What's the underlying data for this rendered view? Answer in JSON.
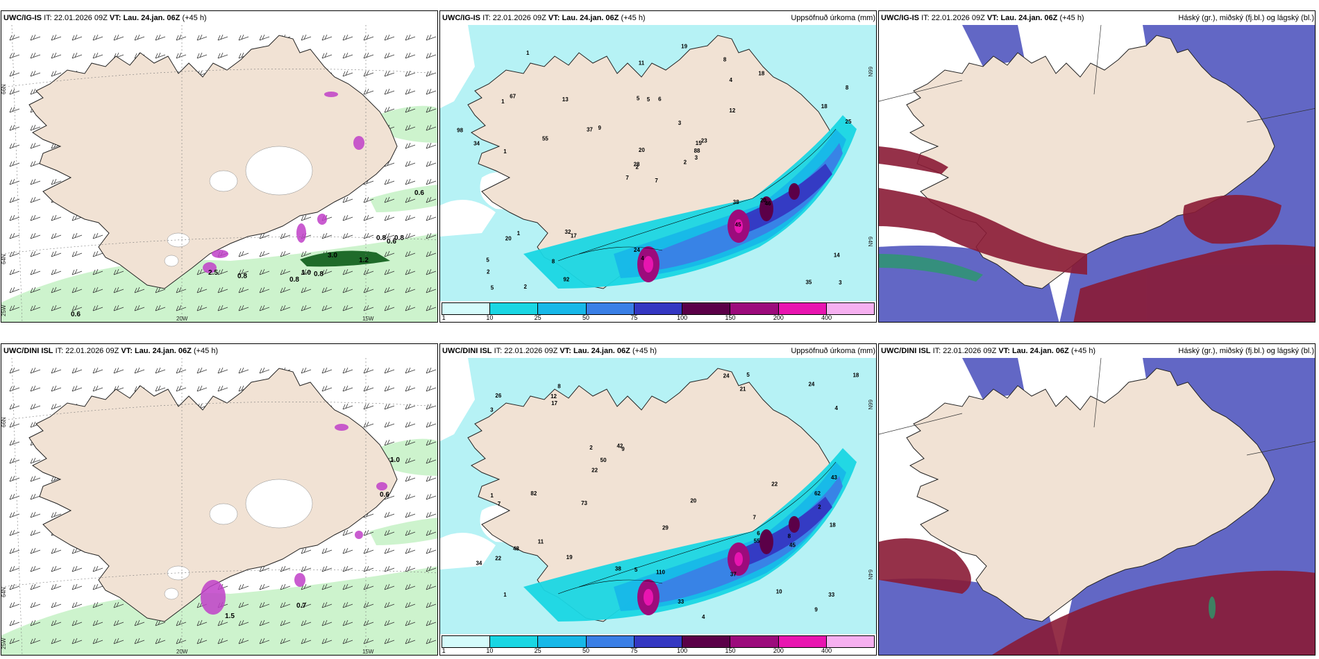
{
  "colors": {
    "land": "#f1e2d4",
    "coast": "#222222",
    "sea_precip": "#b6f2f5",
    "precip_light_green": "#c8f2c8",
    "precip_dark_green": "#1f6b2a",
    "convective_magenta": "#c040c8",
    "high_cloud_red": "#8a1b35",
    "mid_cloud_blue": "#5a5fc2",
    "low_cloud_green": "#2a9a6a"
  },
  "panels": [
    {
      "model": "UWC/IG-IS",
      "it_label": "IT:",
      "it_value": "22.01.2026 09Z",
      "vt_label": "VT:",
      "vt_value": "Lau. 24.jan. 06Z",
      "lead": "(+45 h)",
      "right_title": "",
      "type": "wind_precip",
      "lat_labels": [
        "66N",
        "64N",
        "25W"
      ],
      "lon_labels": [
        "20W",
        "15W"
      ],
      "values": [
        "0.6",
        "0.6",
        "0.8",
        "0.8",
        "1.0",
        "0.8",
        "0.8",
        "0.8",
        "1.2",
        "3.0",
        "0.6",
        "2.5"
      ]
    },
    {
      "model": "UWC/IG-IS",
      "it_label": "IT:",
      "it_value": "22.01.2026 09Z",
      "vt_label": "VT:",
      "vt_value": "Lau. 24.jan. 06Z",
      "lead": "(+45 h)",
      "right_title": "Uppsöfnuð úrkoma (mm)",
      "type": "accum_precip",
      "lat_labels": [
        "66N",
        "64N"
      ],
      "values": [
        "7",
        "1",
        "2",
        "5",
        "15",
        "17",
        "8",
        "6",
        "4",
        "2",
        "1",
        "3",
        "1",
        "8",
        "7",
        "12",
        "2",
        "5",
        "3",
        "1",
        "9",
        "2",
        "8",
        "5",
        "23",
        "46",
        "67",
        "11",
        "34",
        "38",
        "25",
        "28",
        "24",
        "20",
        "13",
        "18",
        "32",
        "35",
        "14",
        "20",
        "19",
        "37",
        "55",
        "45",
        "92",
        "98",
        "88",
        "5",
        "4",
        "3",
        "20",
        "18"
      ],
      "legend": [
        "1",
        "10",
        "25",
        "50",
        "75",
        "100",
        "150",
        "200",
        "400"
      ]
    },
    {
      "model": "UWC/IG-IS",
      "it_label": "IT:",
      "it_value": "22.01.2026 09Z",
      "vt_label": "VT:",
      "vt_value": "Lau. 24.jan. 06Z",
      "lead": "(+45 h)",
      "right_title": "Háský (gr.), miðský (fj.bl.) og lágský (bl.)",
      "type": "clouds"
    },
    {
      "model": "UWC/DINI ISL",
      "it_label": "IT:",
      "it_value": "22.01.2026 09Z",
      "vt_label": "VT:",
      "vt_value": "Lau. 24.jan. 06Z",
      "lead": "(+45 h)",
      "right_title": "",
      "type": "wind_precip",
      "lat_labels": [
        "66N",
        "64N",
        "25W"
      ],
      "lon_labels": [
        "20W",
        "15W"
      ],
      "values": [
        "1.0",
        "0.7",
        "1.5",
        "0.6"
      ]
    },
    {
      "model": "UWC/DINI ISL",
      "it_label": "IT:",
      "it_value": "22.01.2026 09Z",
      "vt_label": "VT:",
      "vt_value": "Lau. 24.jan. 06Z",
      "lead": "(+45 h)",
      "right_title": "Uppsöfnuð úrkoma (mm)",
      "type": "accum_precip",
      "lat_labels": [
        "66N",
        "64N"
      ],
      "values": [
        "7",
        "2",
        "1",
        "8",
        "9",
        "10",
        "22",
        "21",
        "2",
        "4",
        "3",
        "1",
        "26",
        "33",
        "38",
        "43",
        "29",
        "20",
        "42",
        "11",
        "18",
        "24",
        "22",
        "18",
        "24",
        "12",
        "6",
        "7",
        "17",
        "22",
        "33",
        "37",
        "50",
        "73",
        "62",
        "45",
        "55",
        "82",
        "110",
        "48",
        "4",
        "5",
        "9",
        "5",
        "8",
        "19",
        "34"
      ],
      "legend": [
        "1",
        "10",
        "25",
        "50",
        "75",
        "100",
        "150",
        "200",
        "400"
      ]
    },
    {
      "model": "UWC/DINI ISL",
      "it_label": "IT:",
      "it_value": "22.01.2026 09Z",
      "vt_label": "VT:",
      "vt_value": "Lau. 24.jan. 06Z",
      "lead": "(+45 h)",
      "right_title": "Háský (gr.), miðský (fj.bl.) og lágský (bl.)",
      "type": "clouds"
    }
  ]
}
